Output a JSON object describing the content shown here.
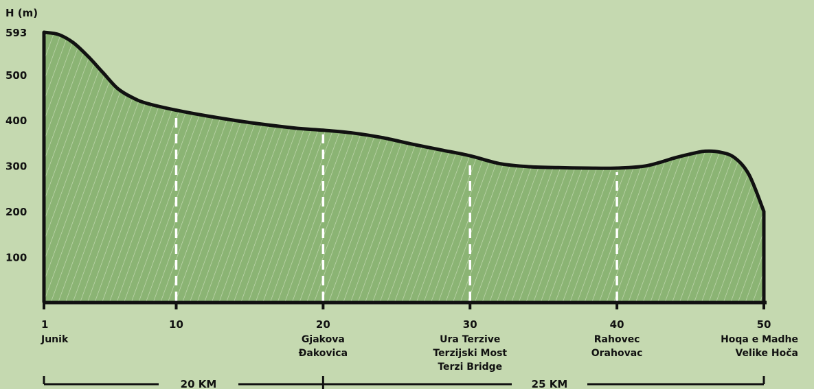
{
  "chart_data": {
    "type": "area",
    "title": "",
    "ylabel": "H (m)",
    "xlabel": "",
    "ylim": [
      0,
      593
    ],
    "xlim": [
      1,
      50
    ],
    "y_ticks": [
      "100",
      "200",
      "300",
      "400",
      "500",
      "593"
    ],
    "x_ticks": [
      {
        "value": 1,
        "label": "1",
        "place": [
          "Junik"
        ]
      },
      {
        "value": 10,
        "label": "10",
        "place": []
      },
      {
        "value": 20,
        "label": "20",
        "place": [
          "Gjakova",
          "Đakovica"
        ]
      },
      {
        "value": 30,
        "label": "30",
        "place": [
          "Ura Terzive",
          "Terzijski Most",
          "Terzi Bridge"
        ]
      },
      {
        "value": 40,
        "label": "40",
        "place": [
          "Rahovec",
          "Orahovac"
        ]
      },
      {
        "value": 50,
        "label": "50",
        "place": [
          "Hoqa e Madhe",
          "Velike Hoča"
        ]
      }
    ],
    "dividers": [
      10,
      20,
      30,
      40
    ],
    "series": [
      {
        "x": [
          1,
          2,
          3,
          4,
          5,
          6,
          7,
          8,
          10,
          12,
          15,
          18,
          20,
          22,
          24,
          26,
          28,
          30,
          32,
          34,
          36,
          38,
          40,
          42,
          44,
          45,
          46,
          47,
          48,
          49,
          50
        ],
        "y": [
          593,
          588,
          570,
          540,
          505,
          470,
          450,
          437,
          422,
          410,
          395,
          383,
          378,
          372,
          362,
          348,
          335,
          322,
          305,
          298,
          296,
          295,
          295,
          300,
          318,
          326,
          332,
          330,
          318,
          280,
          200
        ]
      }
    ],
    "segments": [
      {
        "label": "20 KM",
        "from": 1,
        "to": 20
      },
      {
        "label": "25 KM",
        "from": 20,
        "to": 50
      }
    ],
    "colors": {
      "background": "#c5d9b0",
      "fill": "#8bb474",
      "outline": "#111111",
      "hatch": "#e8f0da",
      "divider": "#ffffff"
    },
    "grid": false,
    "legend": "none"
  }
}
